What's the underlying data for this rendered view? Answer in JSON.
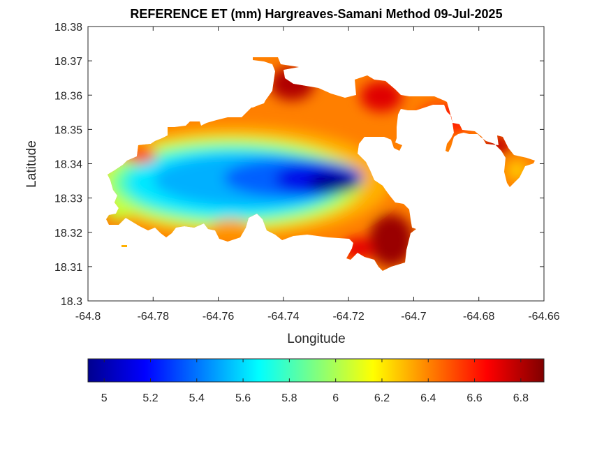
{
  "chart_data": {
    "type": "heatmap",
    "title": "REFERENCE ET (mm) Hargreaves-Samani Method  09-Jul-2025",
    "xlabel": "Longitude",
    "ylabel": "Latitude",
    "xlim": [
      -64.8,
      -64.66
    ],
    "ylim": [
      18.3,
      18.38
    ],
    "xticks": [
      "-64.8",
      "-64.78",
      "-64.76",
      "-64.74",
      "-64.72",
      "-64.7",
      "-64.68",
      "-64.66"
    ],
    "yticks": [
      "18.3",
      "18.31",
      "18.32",
      "18.33",
      "18.34",
      "18.35",
      "18.36",
      "18.37",
      "18.38"
    ],
    "colorbar": {
      "min": 4.93,
      "max": 6.9,
      "ticks": [
        "5",
        "5.2",
        "5.4",
        "5.6",
        "5.8",
        "6",
        "6.2",
        "6.4",
        "6.6",
        "6.8"
      ],
      "colormap": "jet"
    },
    "field": {
      "min_value_region": {
        "lon": -64.727,
        "lat": 18.334,
        "value": 5.0
      },
      "max_value_regions": [
        {
          "lon": -64.705,
          "lat": 18.318,
          "value": 6.9
        },
        {
          "lon": -64.742,
          "lat": 18.364,
          "value": 6.8
        }
      ],
      "grid_on": false
    }
  }
}
